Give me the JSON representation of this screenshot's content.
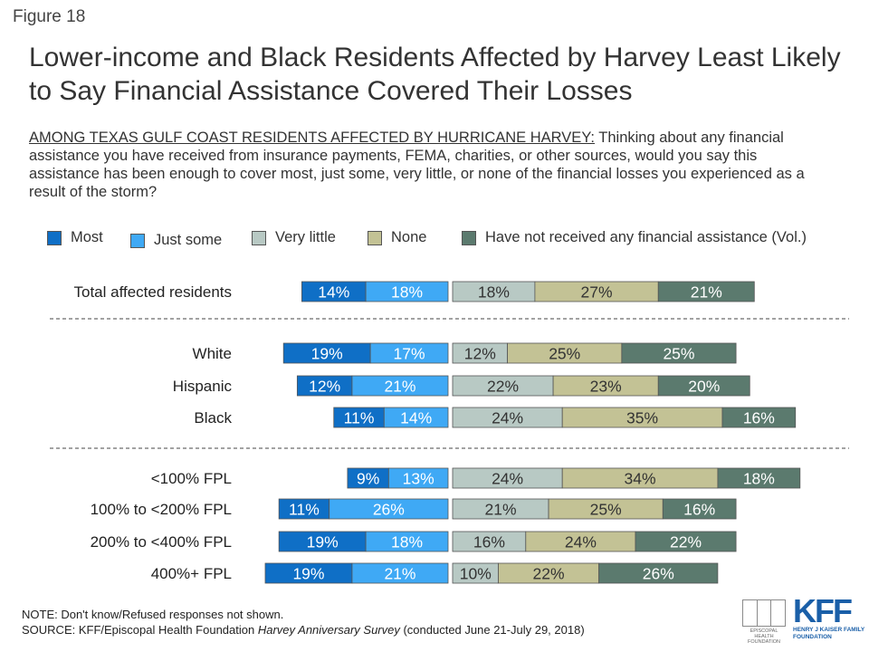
{
  "figure_label": "Figure 18",
  "title": "Lower-income and Black Residents Affected by Harvey Least Likely to Say Financial Assistance Covered Their Losses",
  "question_lead": "AMONG TEXAS GULF COAST RESIDENTS AFFECTED BY HURRICANE HARVEY:",
  "question_text": " Thinking about any financial assistance you have received from insurance payments, FEMA, charities, or other sources, would you say this assistance has been enough to cover most, just some, very little, or none of the financial losses you experienced as a result of the storm?",
  "note": "NOTE: Don't know/Refused responses not shown.",
  "source_prefix": "SOURCE: KFF/Episcopal Health Foundation ",
  "source_title": "Harvey Anniversary Survey",
  "source_suffix": " (conducted June 21-July 29, 2018)",
  "logos": {
    "ehf_caption": "EPISCOPAL HEALTH FOUNDATION",
    "kff_mark": "KFF",
    "kff_sub": "HENRY J KAISER FAMILY FOUNDATION"
  },
  "colors": {
    "most": "#0f6fc6",
    "just_some": "#3fa9f5",
    "very_little": "#b8c9c4",
    "none": "#c3c295",
    "not_received": "#5b7a6e"
  },
  "chart_data": {
    "type": "bar",
    "orientation": "horizontal",
    "stacked": "diverging",
    "legend_position": "top",
    "unit": "%",
    "series": [
      {
        "name": "Most",
        "side": "left",
        "color": "#0f6fc6",
        "values": [
          14,
          19,
          12,
          11,
          9,
          11,
          19,
          19
        ]
      },
      {
        "name": "Just some",
        "side": "left",
        "color": "#3fa9f5",
        "values": [
          18,
          17,
          21,
          14,
          13,
          26,
          18,
          21
        ]
      },
      {
        "name": "Very little",
        "side": "right",
        "color": "#b8c9c4",
        "values": [
          18,
          12,
          22,
          24,
          24,
          21,
          16,
          10
        ]
      },
      {
        "name": "None",
        "side": "right",
        "color": "#c3c295",
        "values": [
          27,
          25,
          23,
          35,
          34,
          25,
          24,
          22
        ]
      },
      {
        "name": "Have not received any financial assistance (Vol.)",
        "side": "right",
        "color": "#5b7a6e",
        "values": [
          21,
          25,
          20,
          16,
          18,
          16,
          22,
          26
        ]
      }
    ],
    "categories": [
      "Total affected residents",
      "White",
      "Hispanic",
      "Black",
      "<100% FPL",
      "100% to <200% FPL",
      "200% to <400% FPL",
      "400%+ FPL"
    ],
    "groups": [
      [
        0
      ],
      [
        1,
        2,
        3
      ],
      [
        4,
        5,
        6,
        7
      ]
    ]
  }
}
